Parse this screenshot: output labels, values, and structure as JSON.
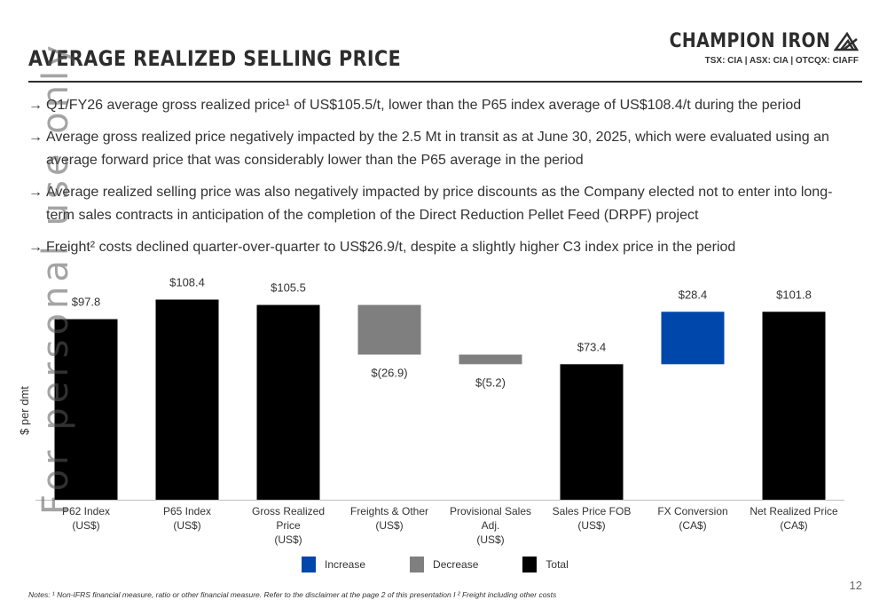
{
  "header": {
    "title": "AVERAGE REALIZED SELLING PRICE",
    "logo_text": "CHAMPION IRON",
    "ticker": "TSX: CIA  |  ASX: CIA  |  OTCQX: CIAFF"
  },
  "bullets": [
    {
      "arrow": "→",
      "text": "Q1/FY26 average gross realized price¹ of US$105.5/t, lower than the P65 index average of US$108.4/t during the period"
    },
    {
      "arrow": "→",
      "text": "Average gross realized price negatively impacted by the 2.5 Mt in transit as at June 30, 2025, which were evaluated using an average forward price that was considerably lower than the P65 average in the period"
    },
    {
      "arrow": "→",
      "text": "Average realized selling price was also negatively impacted by price discounts as the Company elected not to enter into long-term sales contracts in anticipation of the completion of the Direct Reduction Pellet Feed (DRPF) project"
    },
    {
      "arrow": "→",
      "text": "Freight² costs declined quarter-over-quarter to US$26.9/t, despite a slightly higher C3 index price in the period"
    }
  ],
  "watermark": "For personal use only",
  "chart_data": {
    "type": "bar",
    "subtype": "waterfall",
    "ylabel": "$ per dmt",
    "categories": [
      [
        "P62 Index",
        "(US$)"
      ],
      [
        "P65 Index",
        "(US$)"
      ],
      [
        "Gross Realized",
        "Price",
        "(US$)"
      ],
      [
        "Freights & Other",
        "(US$)"
      ],
      [
        "Provisional Sales",
        "Adj.",
        "(US$)"
      ],
      [
        "Sales Price FOB",
        "(US$)"
      ],
      [
        "FX Conversion",
        "(CA$)"
      ],
      [
        "Net Realized Price",
        "(CA$)"
      ]
    ],
    "values": [
      97.8,
      108.4,
      105.5,
      -26.9,
      -5.2,
      73.4,
      28.4,
      101.8
    ],
    "kinds": [
      "total",
      "total",
      "total",
      "decrease",
      "decrease",
      "total",
      "increase",
      "total"
    ],
    "bases": [
      0,
      0,
      0,
      105.5,
      78.6,
      0,
      73.4,
      0
    ],
    "data_labels": [
      "$97.8",
      "$108.4",
      "$105.5",
      "$(26.9)",
      "$(5.2)",
      "$73.4",
      "$28.4",
      "$101.8"
    ],
    "ylim": [
      0,
      110
    ],
    "legend": [
      {
        "label": "Increase",
        "color": "#0047ab"
      },
      {
        "label": "Decrease",
        "color": "#7f7f80"
      },
      {
        "label": "Total",
        "color": "#000000"
      }
    ],
    "legend_position": "bottom"
  },
  "footer": {
    "notes": "Notes: ¹ Non-IFRS financial measure, ratio or other financial measure. Refer to the disclaimer at the page 2 of this presentation I ² Freight including other costs",
    "page_number": "12"
  }
}
